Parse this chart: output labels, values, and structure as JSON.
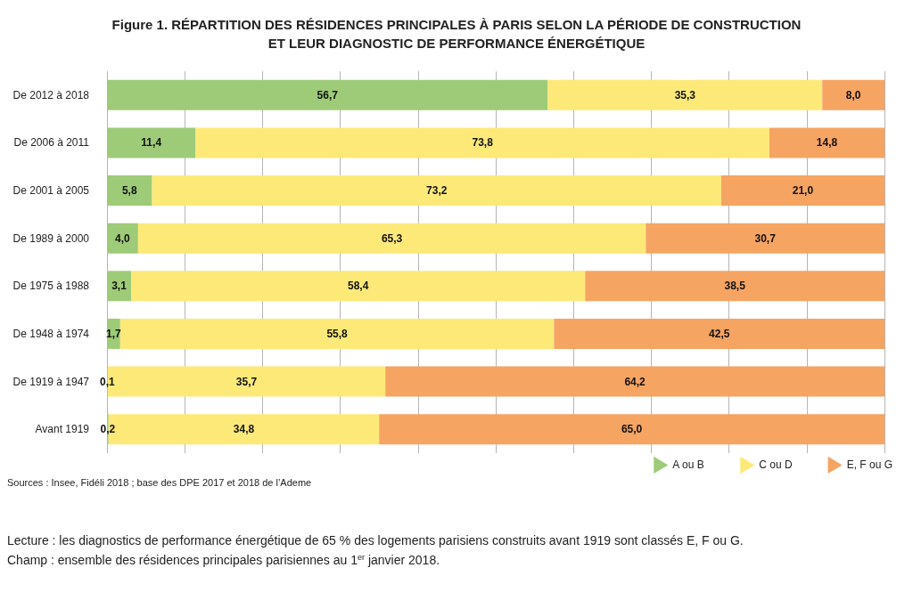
{
  "chart_data": {
    "type": "bar",
    "orientation": "horizontal",
    "stacked": true,
    "title": "Figure 1. RÉPARTITION DES RÉSIDENCES PRINCIPALES À PARIS SELON LA PÉRIODE DE CONSTRUCTION\nET LEUR DIAGNOSTIC DE PERFORMANCE ÉNERGÉTIQUE",
    "categories": [
      "De 2012 à 2018",
      "De 2006 à 2011",
      "De 2001 à 2005",
      "De 1989 à 2000",
      "De 1975 à 1988",
      "De 1948 à 1974",
      "De 1919 à 1947",
      "Avant 1919"
    ],
    "series": [
      {
        "name": "A ou B",
        "color": "#9ecb78",
        "values": [
          56.7,
          11.4,
          5.8,
          4.0,
          3.1,
          1.7,
          0.1,
          0.2
        ],
        "value_labels": [
          "56,7",
          "11,4",
          "5,8",
          "4,0",
          "3,1",
          "1,7",
          "0,1",
          "0,2"
        ]
      },
      {
        "name": "C ou D",
        "color": "#fde978",
        "values": [
          35.3,
          73.8,
          73.2,
          65.3,
          58.4,
          55.8,
          35.7,
          34.8
        ],
        "value_labels": [
          "35,3",
          "73,8",
          "73,2",
          "65,3",
          "58,4",
          "55,8",
          "35,7",
          "34,8"
        ]
      },
      {
        "name": "E, F ou G",
        "color": "#f5a462",
        "values": [
          8.0,
          14.8,
          21.0,
          30.7,
          38.5,
          42.5,
          64.2,
          65.0
        ],
        "value_labels": [
          "8,0",
          "14,8",
          "21,0",
          "30,7",
          "38,5",
          "42,5",
          "64,2",
          "65,0"
        ]
      }
    ],
    "xlim": [
      0,
      100
    ],
    "xticks": [
      {
        "value": 0,
        "label": null
      },
      {
        "value": 10,
        "label": null
      },
      {
        "value": 20,
        "label": null
      },
      {
        "value": 30,
        "label": null
      },
      {
        "value": 40,
        "label": null
      },
      {
        "value": 50,
        "label": null
      },
      {
        "value": 60,
        "label": null
      },
      {
        "value": 70,
        "label": null
      },
      {
        "value": 80,
        "label": null
      },
      {
        "value": 90,
        "label": null
      },
      {
        "value": 100,
        "label": null
      }
    ],
    "tick_labels": "y",
    "grid": "x",
    "legend": "bottom right",
    "annotations": [
      "Sources : Insee, Fidéli 2018 ; base des DPE 2017 et 2018 de l’Ademe",
      "Lecture : les diagnostics de performance énergétique de 65 % des logements parisiens construits avant 1919 sont classés E, F ou G.",
      "Champ : ensemble des résidences principales parisiennes au 1$^{er}$ janvier 2018."
    ]
  }
}
